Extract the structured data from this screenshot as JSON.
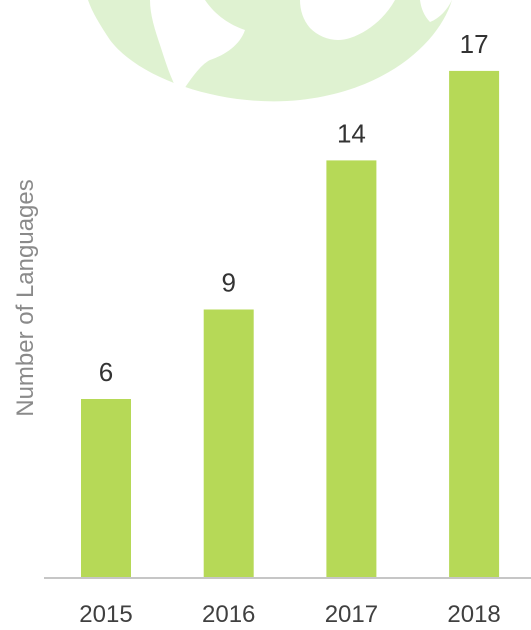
{
  "chart_data": {
    "type": "bar",
    "title": "",
    "xlabel": "",
    "ylabel": "Number of Languages",
    "categories": [
      "2015",
      "2016",
      "2017",
      "2018"
    ],
    "values": [
      6,
      9,
      14,
      17
    ],
    "data_labels": [
      "6",
      "9",
      "14",
      "17"
    ],
    "ylim": [
      0,
      17.8
    ],
    "grid": false,
    "legend": "none",
    "colors": {
      "bar": "#b6d957",
      "axis": "#c6c6c6",
      "background_globe": "#dff2d1"
    }
  }
}
